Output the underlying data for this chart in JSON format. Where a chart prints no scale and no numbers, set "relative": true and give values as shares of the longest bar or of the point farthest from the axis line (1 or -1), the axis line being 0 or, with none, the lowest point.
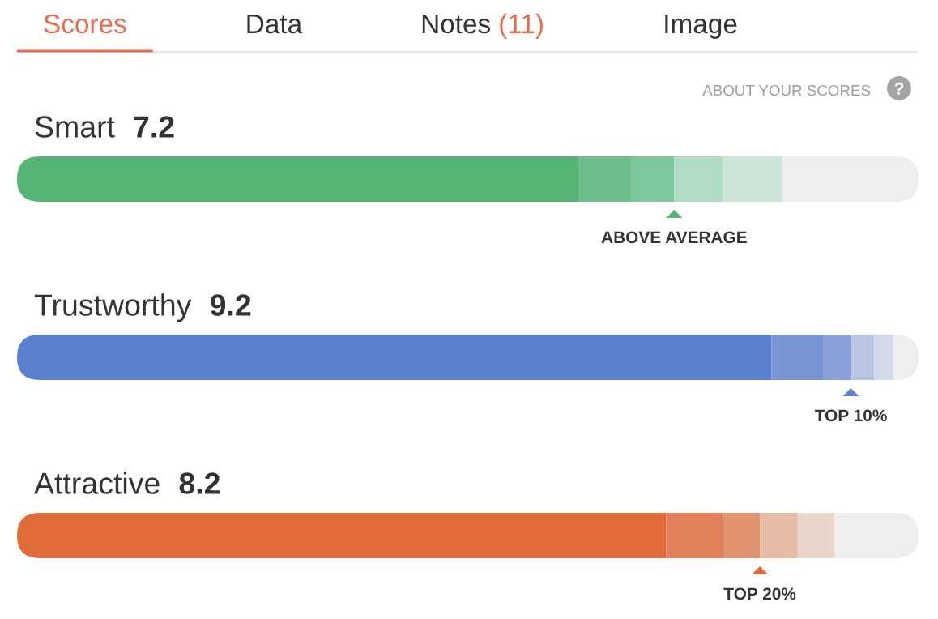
{
  "chart_data": [
    {
      "type": "other",
      "annotations": [
        "Scores",
        "Data",
        "Notes (11)",
        "Image",
        "ABOUT YOUR SCORES",
        "?"
      ]
    },
    {
      "type": "bar",
      "orientation": "horizontal",
      "stacked": true,
      "relative": true,
      "title": "Smart",
      "subtitle": "7.2",
      "categories": [
        null
      ],
      "series": [
        {
          "color": "#57b477",
          "values": [
            0.622
          ]
        },
        {
          "color": "#6cbf8b",
          "values": [
            0.059
          ]
        },
        {
          "color": "#7fc79d",
          "values": [
            0.048
          ]
        },
        {
          "color": "#b0dcc4",
          "values": [
            0.054
          ]
        },
        {
          "color": "#cbe4d7",
          "values": [
            0.066
          ]
        },
        {
          "color": "#eeeeee",
          "values": [
            0.151
          ]
        }
      ],
      "annotations": [
        "ABOVE AVERAGE"
      ]
    },
    {
      "type": "bar",
      "orientation": "horizontal",
      "stacked": true,
      "relative": true,
      "title": "Trustworthy",
      "subtitle": "9.2",
      "categories": [
        null
      ],
      "series": [
        {
          "color": "#5b80cf",
          "values": [
            0.837
          ]
        },
        {
          "color": "#7896d5",
          "values": [
            0.057
          ]
        },
        {
          "color": "#8aa0d8",
          "values": [
            0.031
          ]
        },
        {
          "color": "#bbc6e4",
          "values": [
            0.026
          ]
        },
        {
          "color": "#d3d9e8",
          "values": [
            0.021
          ]
        },
        {
          "color": "#eeeeee",
          "values": [
            0.028
          ]
        }
      ],
      "annotations": [
        "TOP 10%"
      ]
    },
    {
      "type": "bar",
      "orientation": "horizontal",
      "stacked": true,
      "relative": true,
      "title": "Attractive",
      "subtitle": "8.2",
      "categories": [
        null
      ],
      "series": [
        {
          "color": "#df6b38",
          "values": [
            0.72
          ]
        },
        {
          "color": "#e3825a",
          "values": [
            0.063
          ]
        },
        {
          "color": "#e29470",
          "values": [
            0.041
          ]
        },
        {
          "color": "#e8bda8",
          "values": [
            0.042
          ]
        },
        {
          "color": "#ead5ca",
          "values": [
            0.041
          ]
        },
        {
          "color": "#eeeeee",
          "values": [
            0.093
          ]
        }
      ],
      "annotations": [
        "TOP 20%"
      ]
    }
  ]
}
